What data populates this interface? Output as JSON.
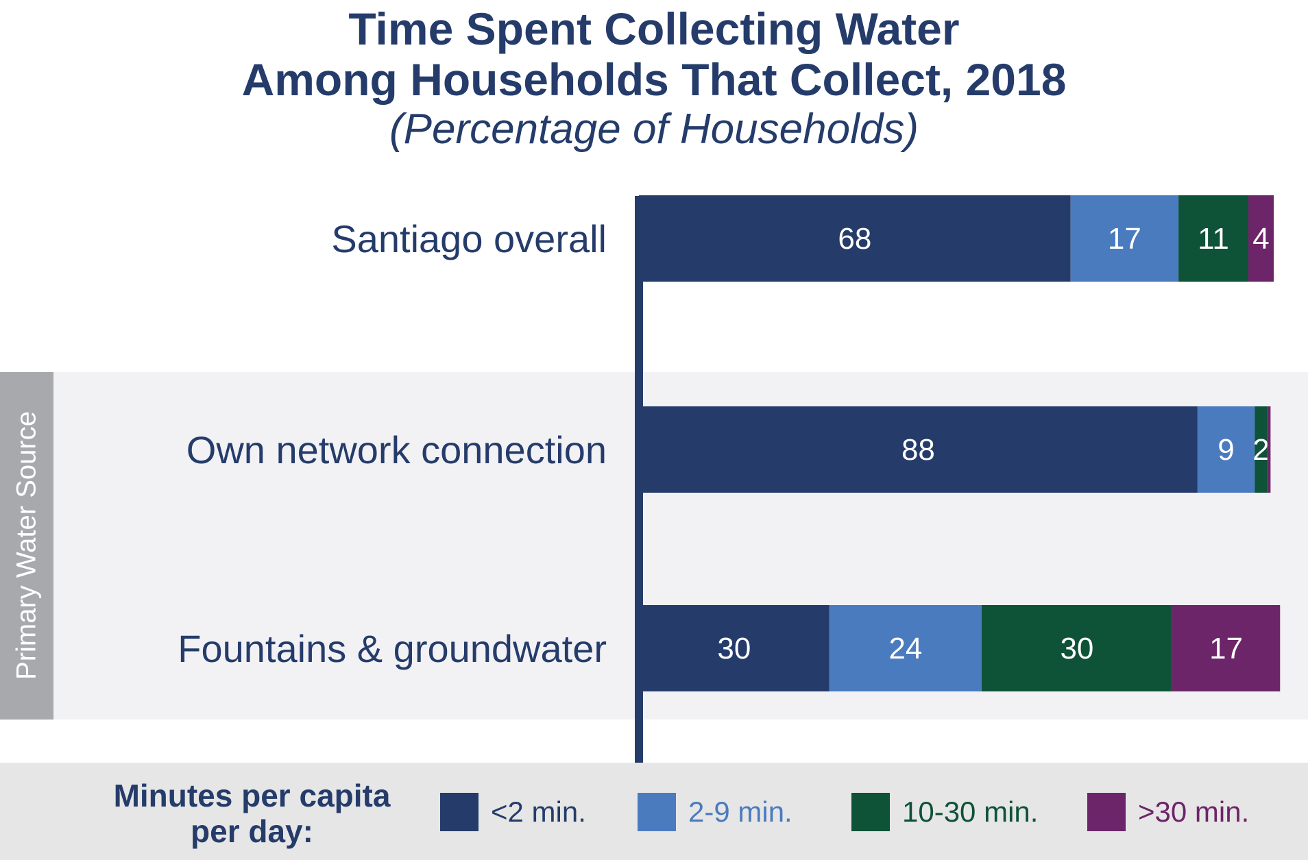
{
  "chart_data": {
    "type": "bar",
    "orientation": "horizontal",
    "stacked": true,
    "title": "Time Spent Collecting Water",
    "title_line2": "Among Households That Collect, 2018",
    "subtitle": "(Percentage of Households)",
    "categories": [
      "Santiago overall",
      "Own network connection",
      "Fountains & groundwater"
    ],
    "group_label": "Primary Water Source",
    "legend_title": "Minutes per capita per day:",
    "legend_position": "bottom",
    "xlim": [
      0,
      100
    ],
    "series": [
      {
        "name": "<2 min.",
        "color": "#253c6b",
        "values": [
          68,
          88,
          30
        ]
      },
      {
        "name": "2-9 min.",
        "color": "#4a7bbf",
        "values": [
          17,
          9,
          24
        ]
      },
      {
        "name": "10-30 min.",
        "color": "#0e5238",
        "values": [
          11,
          2,
          30
        ]
      },
      {
        "name": ">30 min.",
        "color": "#6c2569",
        "values": [
          4,
          0.5,
          17
        ]
      }
    ],
    "data_labels": [
      [
        "68",
        "17",
        "11",
        "4"
      ],
      [
        "88",
        "9",
        "2",
        ""
      ],
      [
        "30",
        "24",
        "30",
        "17"
      ]
    ]
  }
}
